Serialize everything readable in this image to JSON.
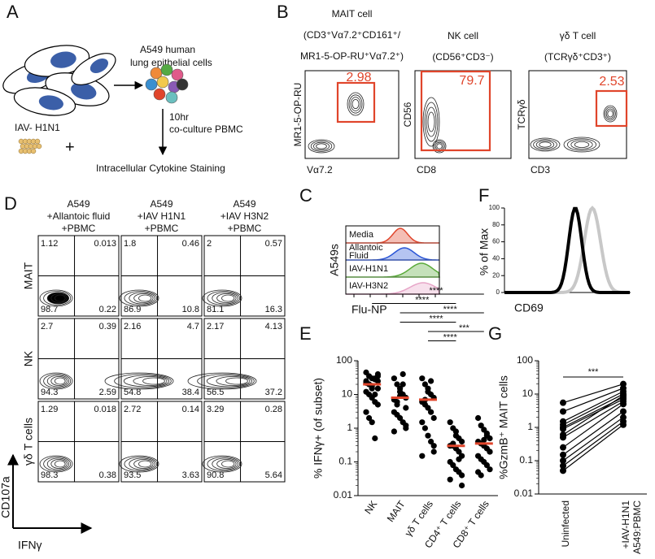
{
  "panel_a": {
    "letter": "A",
    "cell_label": [
      "A549 human",
      "lung epithelial cells"
    ],
    "virus_label": "IAV- H1N1",
    "plus": "+",
    "coculture": [
      "10hr",
      "co-culture PBMC"
    ],
    "staining": "Intracellular Cytokine Staining"
  },
  "panel_b": {
    "letter": "B",
    "gate_color": "#e0452b",
    "plots": [
      {
        "title": [
          "MAIT cell",
          "(CD3⁺Vα7.2⁺CD161⁺/",
          "MR1-5-OP-RU⁺Vα7.2⁺)"
        ],
        "y_label": "MR1-5-OP-RU",
        "x_label": "Vα7.2",
        "gate": 2.98
      },
      {
        "title": [
          "NK cell",
          "(CD56⁺CD3⁻)"
        ],
        "y_label": "CD56",
        "x_label": "CD8",
        "gate": 79.7
      },
      {
        "title": [
          "γδ T cell",
          "(TCRγδ⁺CD3⁺)"
        ],
        "y_label": "TCRγδ",
        "x_label": "CD3",
        "gate": 2.53
      }
    ]
  },
  "panel_c": {
    "letter": "C",
    "y_label": "A549s",
    "x_label": "Flu-NP",
    "tracks": [
      {
        "label": [
          "Media"
        ],
        "color": "#e0452b"
      },
      {
        "label": [
          "Allantoic",
          "Fluid"
        ],
        "color": "#2a55d6"
      },
      {
        "label": [
          "IAV-H1N1"
        ],
        "color": "#5aaa3a"
      },
      {
        "label": [
          "IAV-H3N2"
        ],
        "color": "#e7a6c8"
      }
    ]
  },
  "panel_d": {
    "letter": "D",
    "x_label": "IFNγ",
    "y_label": "CD107a",
    "columns": [
      [
        "A549",
        "+Allantoic fluid",
        "+PBMC"
      ],
      [
        "A549",
        "+IAV H1N1",
        "+PBMC"
      ],
      [
        "A549",
        "+IAV H3N2",
        "+PBMC"
      ]
    ],
    "rows": [
      "MAIT",
      "NK",
      "γδ T cells"
    ],
    "quadrants": [
      [
        [
          1.12,
          0.013,
          98.7,
          0.22
        ],
        [
          1.8,
          0.46,
          86.9,
          10.8
        ],
        [
          2,
          0.57,
          81.1,
          16.3
        ]
      ],
      [
        [
          2.7,
          0.39,
          94.3,
          2.59
        ],
        [
          2.16,
          4.7,
          54.8,
          38.4
        ],
        [
          2.17,
          4.13,
          56.5,
          37.2
        ]
      ],
      [
        [
          1.29,
          0.018,
          98.3,
          0.38
        ],
        [
          2.72,
          0.14,
          93.5,
          3.63
        ],
        [
          3.29,
          0.28,
          90.8,
          5.64
        ]
      ]
    ]
  },
  "panel_f": {
    "letter": "F",
    "y_label": "% of Max",
    "x_label": "CD69",
    "yticks": [
      0,
      20,
      40,
      60,
      80,
      100
    ],
    "ylim": [
      0,
      100
    ]
  },
  "chart_data": [
    {
      "panel": "E",
      "type": "strip",
      "y_label": "% IFNγ+ (of subset)",
      "log_scale": true,
      "ylim": [
        0.01,
        100
      ],
      "yticks": [
        0.01,
        0.1,
        1,
        10,
        100
      ],
      "categories": [
        "NK",
        "MAIT",
        "γδ T cells",
        "CD4⁺ T cells",
        "CD8⁺ T cells"
      ],
      "color": "#000000",
      "median_color": "#e0452b",
      "points": [
        [
          45,
          35,
          30,
          28,
          25,
          22,
          20,
          18,
          30,
          15,
          12,
          10,
          8,
          6,
          40,
          25,
          20,
          15,
          10,
          5,
          3,
          2,
          1.5,
          0.5,
          35
        ],
        [
          30,
          20,
          15,
          10,
          8,
          7,
          5,
          12,
          20,
          4,
          3,
          2.5,
          2,
          1.5,
          1,
          0.8,
          6,
          9,
          40,
          1.2
        ],
        [
          30,
          20,
          15,
          10,
          8,
          6,
          5,
          4,
          3,
          2,
          1.5,
          1,
          0.6,
          0.4,
          0.2,
          0.15,
          7,
          12,
          25,
          0.3
        ],
        [
          1.5,
          1,
          0.8,
          0.5,
          0.4,
          0.3,
          0.3,
          0.25,
          0.2,
          0.15,
          0.1,
          0.08,
          0.06,
          0.05,
          0.04,
          0.03,
          0.35,
          0.6,
          0.12,
          0.02
        ],
        [
          2,
          1.2,
          0.9,
          0.7,
          0.5,
          0.4,
          0.35,
          0.3,
          0.25,
          0.2,
          0.15,
          0.12,
          0.1,
          0.08,
          0.06,
          0.05,
          0.04,
          0.45,
          0.6,
          0.2
        ]
      ],
      "medians": [
        20,
        8,
        7,
        0.3,
        0.35
      ],
      "comparisons": [
        {
          "between": [
            0,
            4
          ],
          "label": "****"
        },
        {
          "between": [
            0,
            3
          ],
          "label": "****"
        },
        {
          "between": [
            1,
            4
          ],
          "label": "****"
        },
        {
          "between": [
            1,
            3
          ],
          "label": "****"
        },
        {
          "between": [
            2,
            4
          ],
          "label": "***"
        },
        {
          "between": [
            2,
            3
          ],
          "label": "****"
        }
      ]
    },
    {
      "panel": "G",
      "type": "paired",
      "y_label": "%GzmB⁺ MAIT cells",
      "log_scale": true,
      "ylim": [
        0.01,
        100
      ],
      "yticks": [
        0.01,
        0.1,
        1,
        10,
        100
      ],
      "categories": [
        [
          "Uninfected"
        ],
        [
          "+IAV-H1N1",
          "A549:PBMC"
        ]
      ],
      "color": "#000000",
      "series": [
        {
          "values": [
            5.5,
            20
          ]
        },
        {
          "values": [
            3,
            15
          ]
        },
        {
          "values": [
            1.5,
            12
          ]
        },
        {
          "values": [
            1.2,
            10
          ]
        },
        {
          "values": [
            1,
            8
          ]
        },
        {
          "values": [
            0.9,
            7
          ]
        },
        {
          "values": [
            0.6,
            9
          ]
        },
        {
          "values": [
            0.25,
            5
          ]
        },
        {
          "values": [
            0.15,
            3
          ]
        },
        {
          "values": [
            0.1,
            2
          ]
        },
        {
          "values": [
            0.07,
            1.5
          ]
        },
        {
          "values": [
            0.05,
            1.2
          ]
        },
        {
          "values": [
            0.5,
            6
          ]
        }
      ],
      "comparison": {
        "between": [
          0,
          1
        ],
        "label": "***"
      }
    }
  ]
}
